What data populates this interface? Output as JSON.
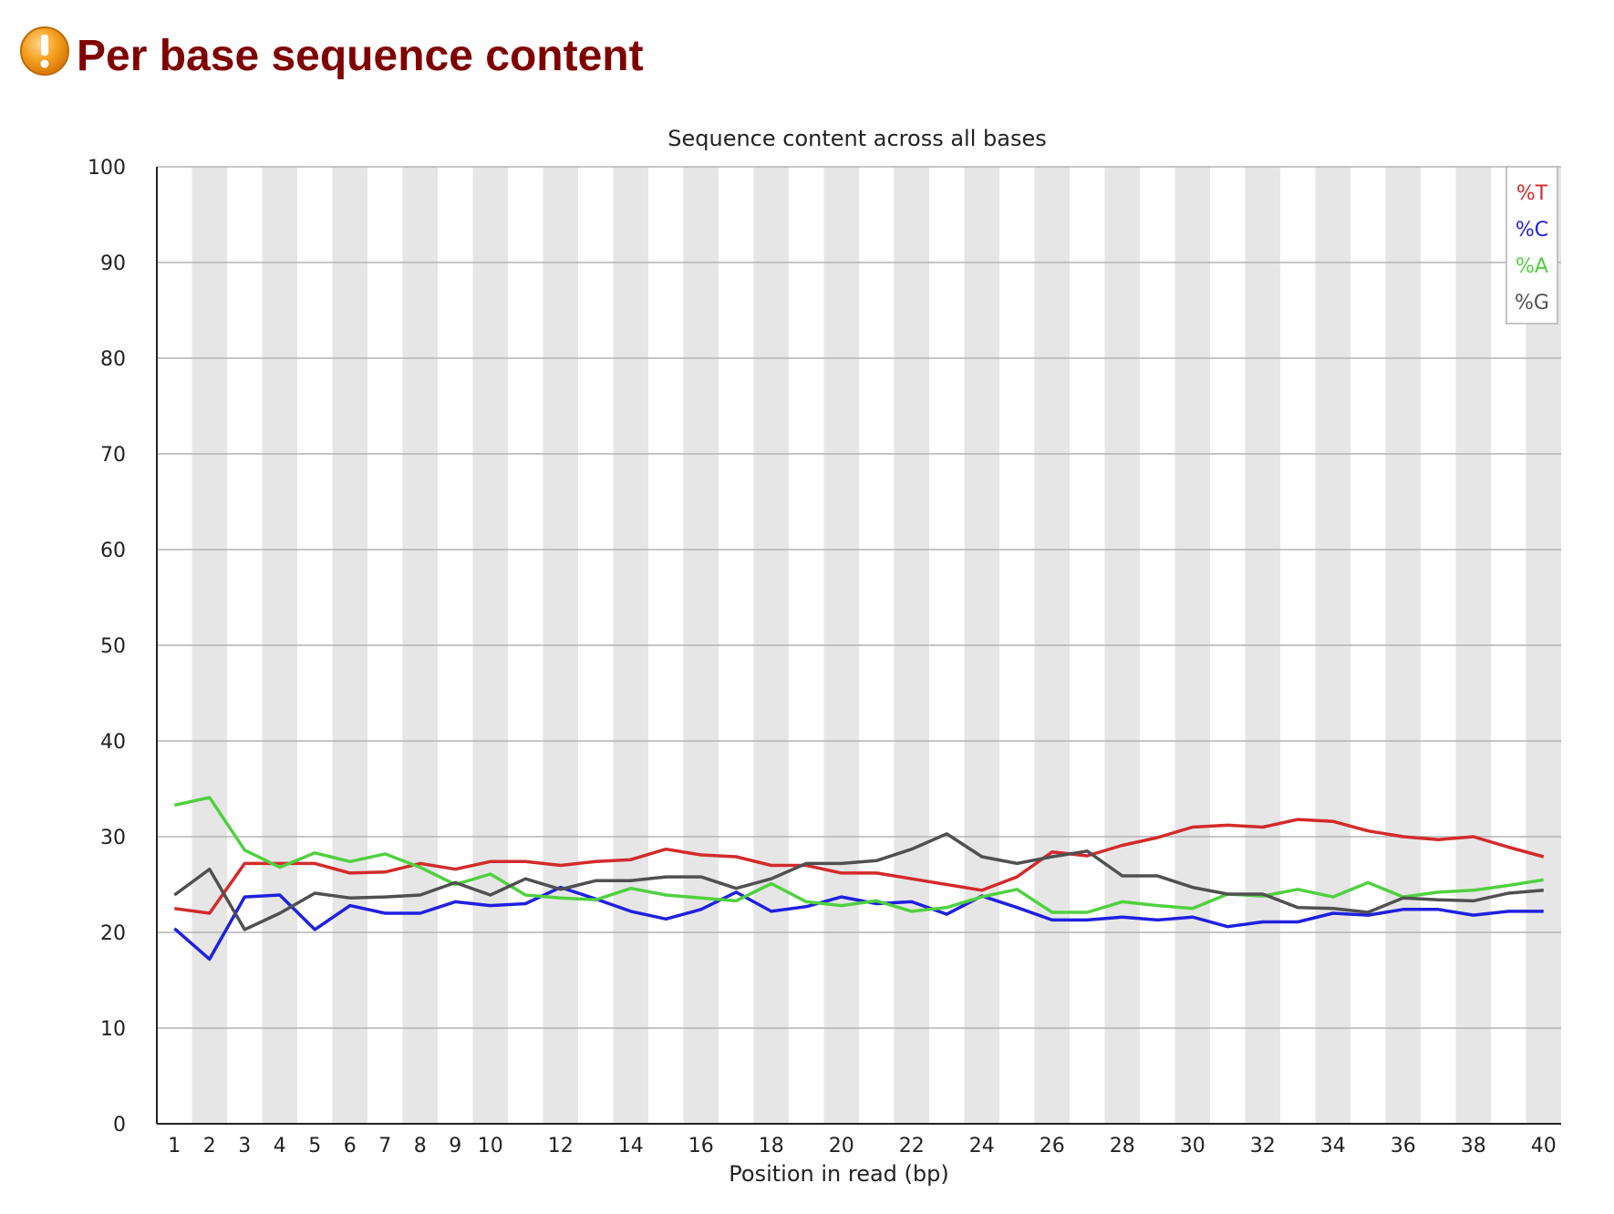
{
  "header": {
    "title": "Per base sequence content",
    "status_icon": "warning-icon",
    "status_color": "#f5a020"
  },
  "chart_data": {
    "type": "line",
    "title": "Sequence content across all bases",
    "xlabel": "Position in read (bp)",
    "ylabel": "",
    "ylim": [
      0,
      100
    ],
    "y_ticks": [
      "0",
      "10",
      "20",
      "30",
      "40",
      "50",
      "60",
      "70",
      "80",
      "90",
      "100"
    ],
    "x_tick_labels": [
      "1",
      "2",
      "3",
      "4",
      "5",
      "6",
      "7",
      "8",
      "9",
      "10",
      "12",
      "14",
      "16",
      "18",
      "20",
      "22",
      "24",
      "26",
      "28",
      "30",
      "32",
      "34",
      "36",
      "38",
      "40"
    ],
    "x": [
      1,
      2,
      3,
      4,
      5,
      6,
      7,
      8,
      9,
      10,
      11,
      12,
      13,
      14,
      15,
      16,
      17,
      18,
      19,
      20,
      21,
      22,
      23,
      24,
      25,
      26,
      27,
      28,
      29,
      30,
      31,
      32,
      33,
      34,
      35,
      36,
      37,
      38,
      39,
      40
    ],
    "grid": true,
    "alternating_column_bands": true,
    "legend_position": "top-right",
    "series": [
      {
        "name": "%T",
        "color": "#d42a2a",
        "values": [
          22.5,
          22.0,
          27.2,
          27.2,
          27.2,
          26.2,
          26.3,
          27.2,
          26.6,
          27.4,
          27.4,
          27.0,
          27.4,
          27.6,
          28.7,
          28.1,
          27.9,
          27.0,
          27.0,
          26.2,
          26.2,
          25.6,
          25.0,
          24.4,
          25.8,
          28.4,
          28.0,
          29.1,
          29.9,
          31.0,
          31.2,
          31.0,
          31.8,
          31.6,
          30.6,
          30.0,
          29.7,
          30.0,
          28.9,
          27.9
        ]
      },
      {
        "name": "%C",
        "color": "#2020e0",
        "values": [
          20.4,
          17.2,
          23.7,
          23.9,
          20.3,
          22.8,
          22.0,
          22.0,
          23.2,
          22.8,
          23.0,
          24.7,
          23.5,
          22.2,
          21.4,
          22.4,
          24.2,
          22.2,
          22.7,
          23.7,
          23.0,
          23.2,
          21.9,
          23.8,
          22.6,
          21.3,
          21.3,
          21.6,
          21.3,
          21.6,
          20.6,
          21.1,
          21.1,
          22.0,
          21.8,
          22.4,
          22.4,
          21.8,
          22.2,
          22.2
        ]
      },
      {
        "name": "%A",
        "color": "#50d040",
        "values": [
          33.3,
          34.1,
          28.6,
          26.8,
          28.3,
          27.4,
          28.2,
          26.8,
          25.0,
          26.1,
          23.9,
          23.6,
          23.4,
          24.6,
          23.9,
          23.6,
          23.3,
          25.1,
          23.2,
          22.8,
          23.3,
          22.2,
          22.6,
          23.7,
          24.5,
          22.1,
          22.1,
          23.2,
          22.8,
          22.5,
          24.0,
          23.8,
          24.5,
          23.7,
          25.2,
          23.7,
          24.2,
          24.4,
          24.9,
          25.5
        ]
      },
      {
        "name": "%G",
        "color": "#505050",
        "values": [
          23.9,
          26.6,
          20.3,
          22.0,
          24.1,
          23.6,
          23.7,
          23.9,
          25.2,
          23.9,
          25.6,
          24.5,
          25.4,
          25.4,
          25.8,
          25.8,
          24.6,
          25.6,
          27.2,
          27.2,
          27.5,
          28.7,
          30.3,
          27.9,
          27.2,
          27.9,
          28.5,
          25.9,
          25.9,
          24.7,
          24.0,
          24.0,
          22.6,
          22.5,
          22.1,
          23.6,
          23.4,
          23.3,
          24.1,
          24.4
        ]
      }
    ]
  }
}
